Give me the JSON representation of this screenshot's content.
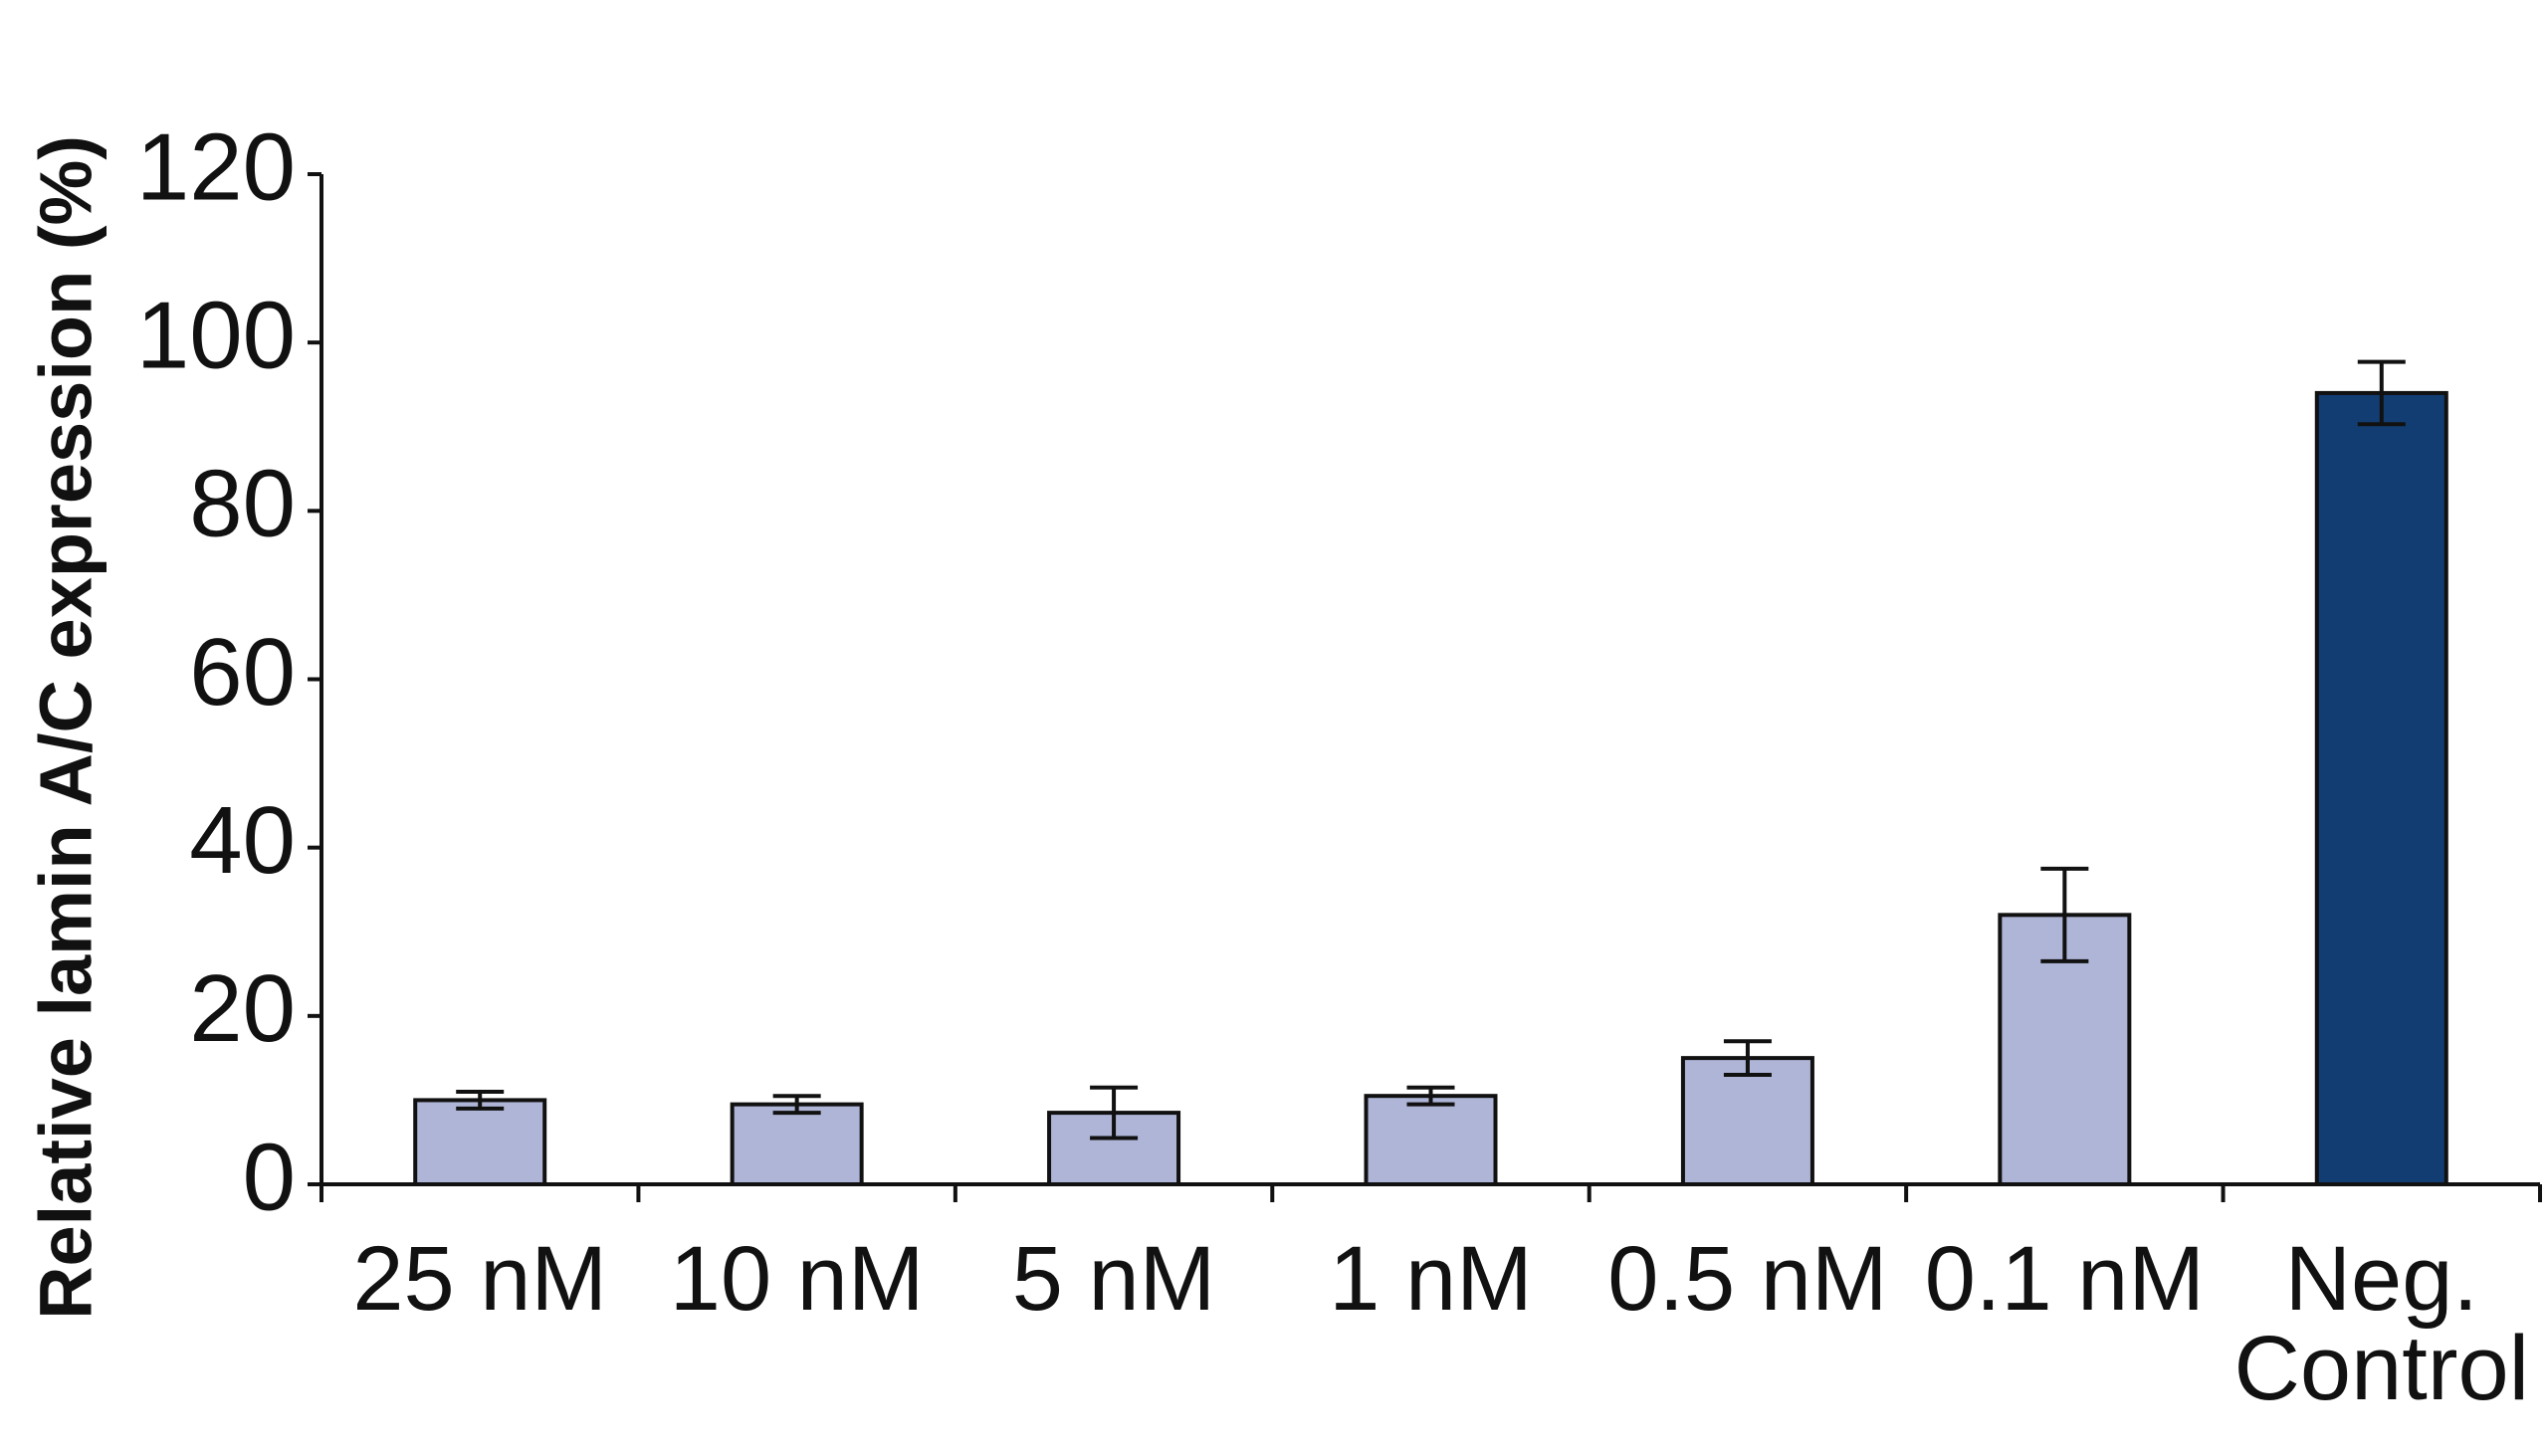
{
  "chart_data": {
    "type": "bar",
    "y_label": "Relative lamin A/C expression (%)",
    "categories": [
      "25 nM",
      "10 nM",
      "5 nM",
      "1 nM",
      "0.5 nM",
      "0.1 nM",
      "Neg. Control"
    ],
    "values": [
      10,
      9.5,
      8.5,
      10.5,
      15,
      32,
      94
    ],
    "errors": [
      1,
      1,
      3,
      1,
      2,
      5.5,
      3.7
    ],
    "colors": [
      "#aeb5d6",
      "#aeb5d6",
      "#aeb5d6",
      "#aeb5d6",
      "#aeb5d6",
      "#aeb5d6",
      "#123d72"
    ],
    "ylim": [
      0,
      120
    ],
    "yticks": [
      0,
      20,
      40,
      60,
      80,
      100,
      120
    ],
    "grid": false
  }
}
